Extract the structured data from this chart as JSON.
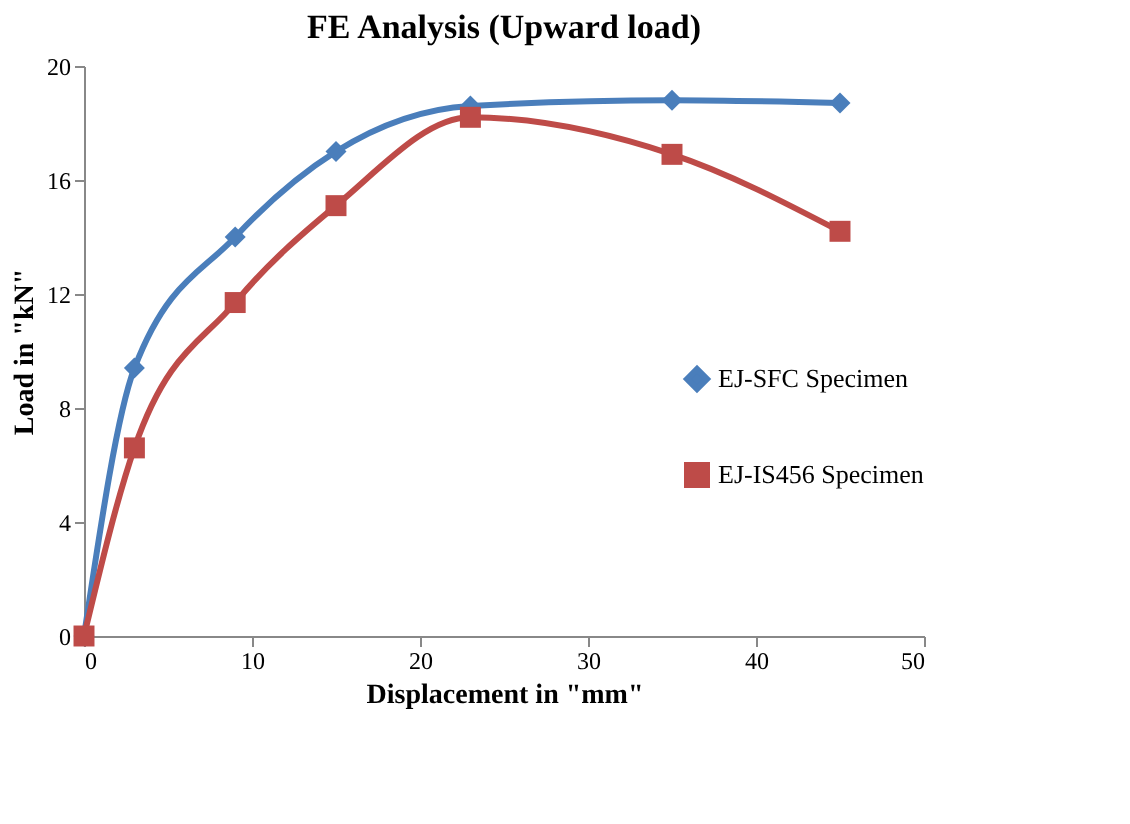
{
  "chart_data": {
    "type": "line",
    "title": "FE Analysis (Upward load)",
    "xlabel": "Displacement in \"mm\"",
    "ylabel": "Load in \"kN\"",
    "x": [
      0,
      3,
      9,
      15,
      23,
      35,
      45
    ],
    "series": [
      {
        "name": "EJ-SFC Specimen",
        "color": "#4a7ebb",
        "marker": "diamond",
        "values": [
          0,
          9.4,
          14.0,
          17.0,
          18.6,
          18.8,
          18.7
        ]
      },
      {
        "name": "EJ-IS456 Specimen",
        "color": "#be4b48",
        "marker": "square",
        "values": [
          0,
          6.6,
          11.7,
          15.1,
          18.2,
          16.9,
          14.2
        ]
      }
    ],
    "xlim": [
      0,
      50
    ],
    "xticks": [
      0,
      10,
      20,
      30,
      40,
      50
    ],
    "ylim": [
      0,
      20
    ],
    "yticks": [
      0,
      4,
      8,
      12,
      16,
      20
    ],
    "grid": false,
    "legend": "right",
    "line_style": "solid"
  }
}
